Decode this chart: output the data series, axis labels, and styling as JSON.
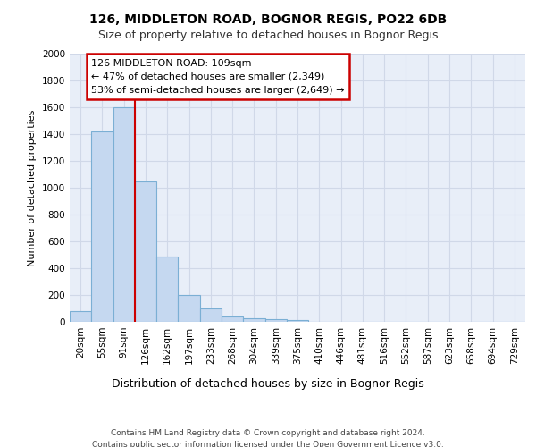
{
  "title1": "126, MIDDLETON ROAD, BOGNOR REGIS, PO22 6DB",
  "title2": "Size of property relative to detached houses in Bognor Regis",
  "xlabel": "Distribution of detached houses by size in Bognor Regis",
  "ylabel": "Number of detached properties",
  "bar_labels": [
    "20sqm",
    "55sqm",
    "91sqm",
    "126sqm",
    "162sqm",
    "197sqm",
    "233sqm",
    "268sqm",
    "304sqm",
    "339sqm",
    "375sqm",
    "410sqm",
    "446sqm",
    "481sqm",
    "516sqm",
    "552sqm",
    "587sqm",
    "623sqm",
    "658sqm",
    "694sqm",
    "729sqm"
  ],
  "bar_values": [
    80,
    1420,
    1600,
    1050,
    490,
    200,
    100,
    40,
    25,
    20,
    15,
    0,
    0,
    0,
    0,
    0,
    0,
    0,
    0,
    0,
    0
  ],
  "bar_color": "#c5d8f0",
  "bar_edge_color": "#7bafd4",
  "grid_color": "#d0d8e8",
  "background_color": "#e8eef8",
  "annotation_text": "126 MIDDLETON ROAD: 109sqm\n← 47% of detached houses are smaller (2,349)\n53% of semi-detached houses are larger (2,649) →",
  "annotation_box_color": "#ffffff",
  "annotation_box_edge": "#cc0000",
  "ylim": [
    0,
    2000
  ],
  "yticks": [
    0,
    200,
    400,
    600,
    800,
    1000,
    1200,
    1400,
    1600,
    1800,
    2000
  ],
  "footer_text": "Contains HM Land Registry data © Crown copyright and database right 2024.\nContains public sector information licensed under the Open Government Licence v3.0.",
  "title1_fontsize": 10,
  "title2_fontsize": 9,
  "xlabel_fontsize": 9,
  "ylabel_fontsize": 8,
  "tick_fontsize": 7.5,
  "annotation_fontsize": 8,
  "footer_fontsize": 6.5
}
